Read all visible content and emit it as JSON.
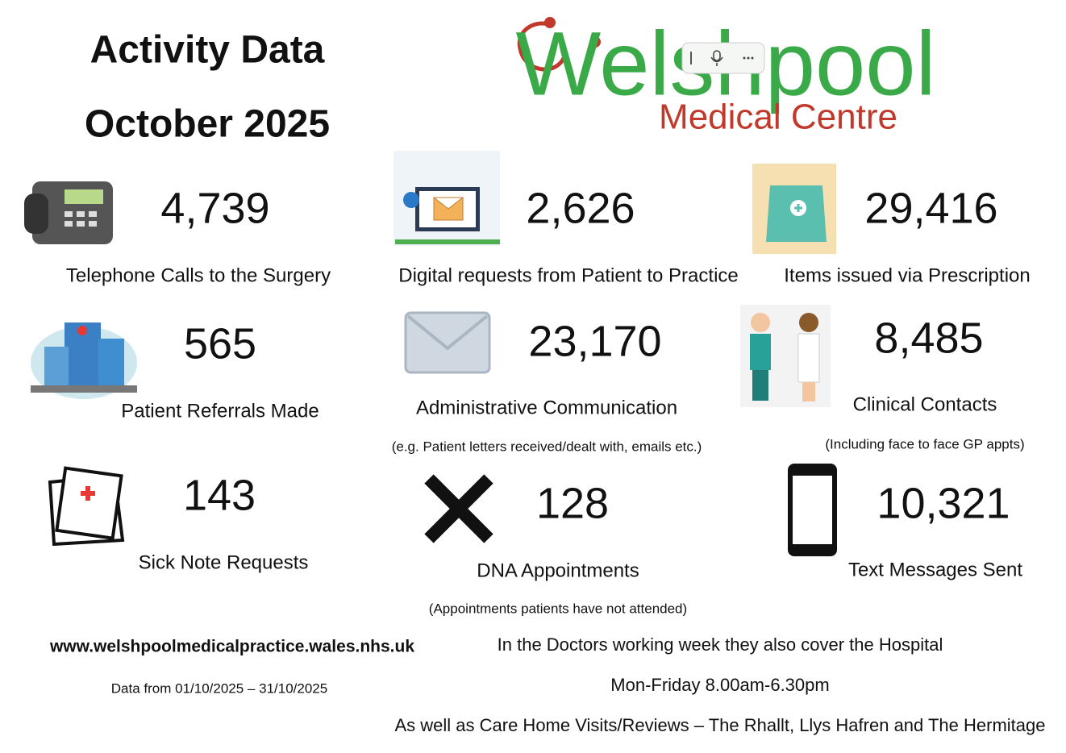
{
  "header": {
    "title": "Activity Data",
    "period": "October 2025"
  },
  "logo": {
    "name": "Welshpool",
    "subtitle": "Medical Centre"
  },
  "stats": [
    {
      "value": "4,739",
      "label": "Telephone Calls to the Surgery"
    },
    {
      "value": "2,626",
      "label": "Digital requests from Patient to Practice"
    },
    {
      "value": "29,416",
      "label": "Items issued via Prescription"
    },
    {
      "value": "565",
      "label": "Patient Referrals Made"
    },
    {
      "value": "23,170",
      "label": "Administrative Communication",
      "note": "(e.g. Patient letters received/dealt with, emails etc.)"
    },
    {
      "value": "8,485",
      "label": "Clinical Contacts",
      "note": "(Including face to face GP appts)"
    },
    {
      "value": "143",
      "label": "Sick Note Requests"
    },
    {
      "value": "128",
      "label": "DNA Appointments",
      "note": "(Appointments patients have not attended)"
    },
    {
      "value": "10,321",
      "label": "Text Messages Sent"
    }
  ],
  "footer": {
    "website": "www.welshpoolmedicalpractice.wales.nhs.uk",
    "data_range": "Data from 01/10/2025 – 31/10/2025",
    "lines": [
      "In the Doctors working week they also cover the Hospital",
      "Mon-Friday  8.00am-6.30pm",
      "As well as Care Home Visits/Reviews – The Rhallt, Llys Hafren and The Hermitage"
    ]
  }
}
